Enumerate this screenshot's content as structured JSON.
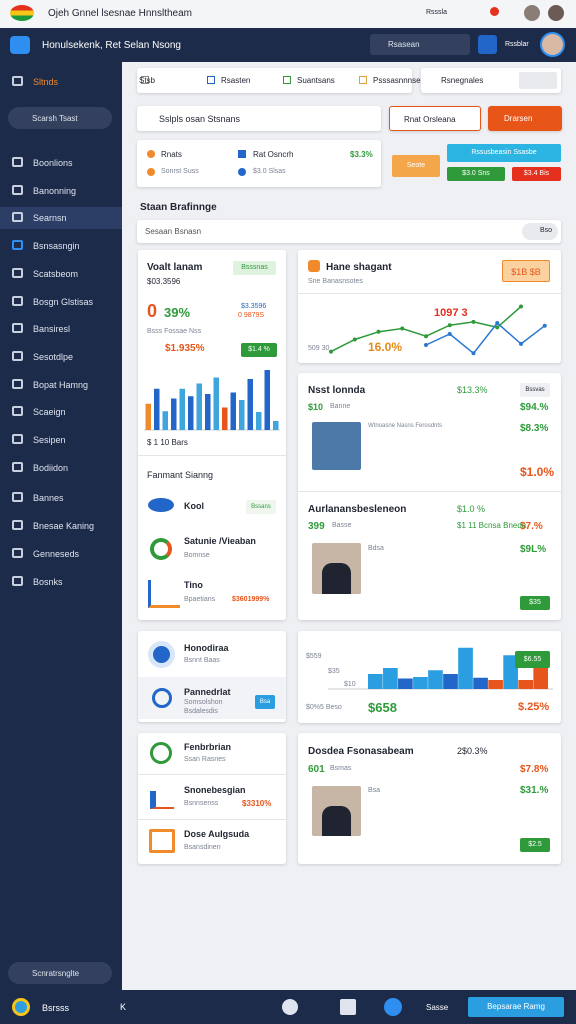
{
  "status_bar": {
    "title": "Ojeh Gnnel lsesnae Hnnsltheam",
    "time": "Rsssla"
  },
  "header": {
    "brand": "Honulsekenk,  Ret  Selan Nsong",
    "search": "Rsasean",
    "user": "Rssblar"
  },
  "sidebar": {
    "active": "Sltnds",
    "search": "Scarsh Tsast",
    "items": [
      "Boonlions",
      "Banonning",
      "Searnsn",
      "Bsnsasngin",
      "Scatsbeom",
      "Bosgn Glstisas",
      "Bansiresl",
      "Sesotdlpe",
      "Bopat Hamng",
      "Scaeign",
      "Sesipen",
      "Bodiidon",
      "Bannes",
      "Bnesae Kaning",
      "Genneseds",
      "Bosnks"
    ],
    "footer": "Scnratrsnglte"
  },
  "tabs": [
    "Stsb",
    "Rsasten",
    "Suantsans",
    "Psssasnnnse",
    "Rsnegnales"
  ],
  "filter": {
    "select": "Sslpls osan Stsnans",
    "button_1": "Rnat Orsleana",
    "button_2": "Drarsen"
  },
  "info": {
    "row_1": [
      "Rnats",
      "Rat Osncrh",
      "$3.3%"
    ],
    "row_2": [
      "Sonrst Suss",
      "$3.0 Slsas"
    ],
    "button_orange": "Seote",
    "button_cyan": "Rssusbeasin Ssasbe",
    "button_green": "$3.0 Sns",
    "button_red": "$3.4 Bis"
  },
  "section": {
    "title": "Staan Brafinnge",
    "search": "Sesaan Bsnasn",
    "filter": "Bso"
  },
  "card_a": {
    "title": "Voalt lanam",
    "subtitle": "$03.3596",
    "badge": "Bsssnas",
    "big_left": "0",
    "big_right": "39%",
    "side_1": "$3.3596",
    "side_2": "0 9879S",
    "label": "Bsss Fossae Nss",
    "value": "$1.935%",
    "value_badge": "$1.4 %",
    "chart_label": "$ 1 10 Bars",
    "chart": {
      "values": [
        35,
        55,
        25,
        42,
        55,
        45,
        62,
        48,
        70,
        30,
        50,
        40,
        68,
        24,
        80,
        12
      ],
      "colors": [
        "#f08a2b",
        "#2166c8",
        "#3fa6dd",
        "#2166c8",
        "#3fa6dd",
        "#2166c8",
        "#3fa6dd",
        "#2166c8",
        "#3fa6dd",
        "#e6561c",
        "#2166c8",
        "#3fa6dd",
        "#2166c8",
        "#3fa6dd",
        "#2166c8",
        "#3fa6dd"
      ]
    },
    "section": "Fanmant Sianng",
    "rows": [
      {
        "title": "Kool",
        "badge": "Bssans"
      },
      {
        "title": "Satunie /Vieaban",
        "sub": "Bomnse"
      },
      {
        "title": "Tino",
        "sub": "Bpaetians",
        "value": "$3601999%"
      }
    ]
  },
  "card_b": {
    "title": "Hane shagant",
    "subtitle": "Sne Banasnsotes",
    "badge": "$1B $B",
    "label_left": "509 30",
    "label_red": "1097 3",
    "label_orange": "16.0%",
    "chart": {
      "series": [
        {
          "color": "#2f9a3a",
          "values": [
            8,
            30,
            44,
            50,
            36,
            56,
            62,
            52,
            90
          ]
        },
        {
          "color": "#2a78d0",
          "values": [
            null,
            null,
            null,
            null,
            20,
            40,
            5,
            60,
            22,
            55
          ]
        }
      ]
    }
  },
  "card_c": {
    "title": "Nsst lonnda",
    "value": "$13.3%",
    "badge": "Bssvas",
    "sub_1": "$10",
    "sub_2": "Banne",
    "right_1": "$94.%",
    "right_2": "$8.3%",
    "caption": "Wtnoasne Nasns Ferosdnts",
    "big": "$1.0%",
    "title_2": "Aurlanansbesleneon",
    "value_2": "$1.0 %",
    "sub_3": "399",
    "sub_4": "Basse",
    "right_3": "$7.%",
    "caption_2": "$1 11 Bcnsa Bneda",
    "right_4": "$9L%",
    "person": "Bdsa",
    "button": "$35"
  },
  "card_d": {
    "title": "Honodiraa",
    "sub": "Bsnnt Baas",
    "title_2": "Pannedrlat",
    "sub_2": "Somsolshon",
    "sub_3": "Bsdalesdis",
    "badge": "Bsa"
  },
  "card_e": {
    "labels": [
      "$559",
      "$35",
      "$10"
    ],
    "badge": "$6.55",
    "foot_label": "$0%5 Beso",
    "foot_value": "$658",
    "foot_right": "$.25%",
    "chart": {
      "values": [
        20,
        28,
        14,
        16,
        25,
        20,
        55,
        15,
        12,
        45,
        12,
        40
      ],
      "colors": [
        "#2a9ee0",
        "#2a9ee0",
        "#2166c8",
        "#2a9ee0",
        "#2a9ee0",
        "#2166c8",
        "#2a9ee0",
        "#2166c8",
        "#e6561c",
        "#2a9ee0",
        "#e6561c",
        "#e6561c"
      ]
    }
  },
  "card_f": {
    "rows": [
      {
        "title": "Fenbrbrian",
        "sub": "Ssan Rasnes"
      },
      {
        "title": "Snonebesgian",
        "sub": "Bsnnsenss",
        "value": "$3310%"
      },
      {
        "title": "Dose Aulgsuda",
        "sub": "Bsansdinen"
      }
    ]
  },
  "card_g": {
    "title": "Dosdea Fsonasabeam",
    "value": "2$0.3%",
    "sub_1": "601",
    "sub_2": "Bsmas",
    "right_1": "$7.8%",
    "right_2": "$31.%",
    "person": "Bsa",
    "button": "$2.5"
  },
  "bottom_bar": {
    "label": "Bsrsss",
    "key": "K",
    "center": "Sasse",
    "button": "Bepsarae Ramg"
  }
}
